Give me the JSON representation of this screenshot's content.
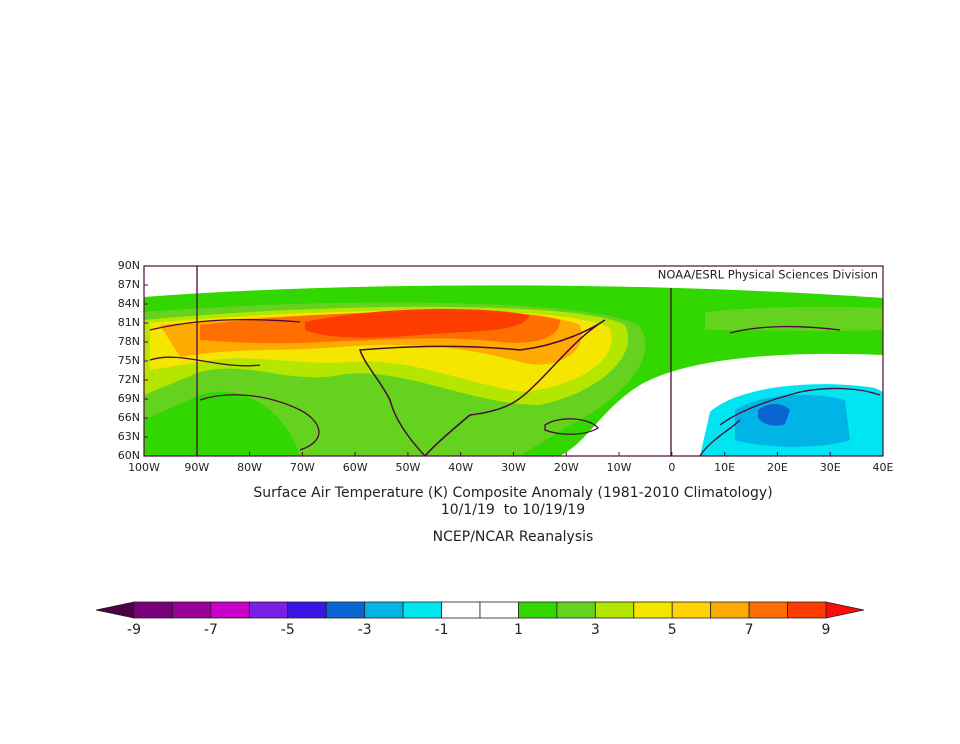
{
  "map": {
    "credit": "NOAA/ESRL Physical Sciences Division",
    "lat_labels": [
      "90N",
      "87N",
      "84N",
      "81N",
      "78N",
      "75N",
      "72N",
      "69N",
      "66N",
      "63N",
      "60N"
    ],
    "lon_labels": [
      "100W",
      "90W",
      "80W",
      "70W",
      "60W",
      "50W",
      "40W",
      "30W",
      "20W",
      "10W",
      "0",
      "10E",
      "20E",
      "30E",
      "40E"
    ],
    "title_lines": [
      "Surface Air Temperature (K) Composite Anomaly (1981-2010 Climatology)",
      "10/1/19  to 10/19/19"
    ],
    "source": "NCEP/NCAR Reanalysis",
    "colorbar": {
      "ticks": [
        -9,
        -7,
        -5,
        -3,
        -1,
        1,
        3,
        5,
        7,
        9
      ],
      "low_color": "#4b0046",
      "high_color": "#ff0a0a",
      "colors": [
        "#780078",
        "#9b009b",
        "#c800c8",
        "#7a1fe6",
        "#3c14e6",
        "#0a64d2",
        "#00b4e6",
        "#00e6f0",
        "#ffffff",
        "#ffffff",
        "#32d700",
        "#64d21e",
        "#b4e600",
        "#f5e600",
        "#ffd200",
        "#ffaa00",
        "#ff6e00",
        "#ff3c00"
      ]
    }
  }
}
